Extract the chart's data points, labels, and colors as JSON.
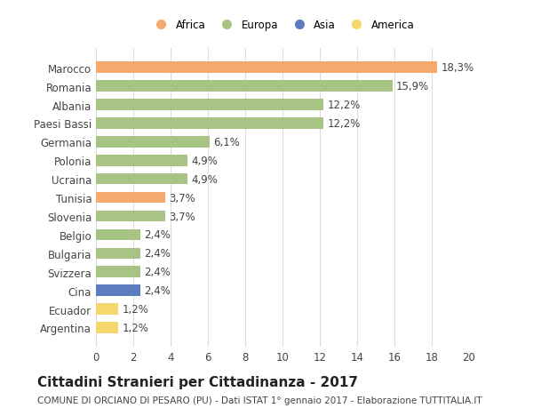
{
  "countries": [
    "Argentina",
    "Ecuador",
    "Cina",
    "Svizzera",
    "Bulgaria",
    "Belgio",
    "Slovenia",
    "Tunisia",
    "Ucraina",
    "Polonia",
    "Germania",
    "Paesi Bassi",
    "Albania",
    "Romania",
    "Marocco"
  ],
  "values": [
    1.2,
    1.2,
    2.4,
    2.4,
    2.4,
    2.4,
    3.7,
    3.7,
    4.9,
    4.9,
    6.1,
    12.2,
    12.2,
    15.9,
    18.3
  ],
  "labels": [
    "1,2%",
    "1,2%",
    "2,4%",
    "2,4%",
    "2,4%",
    "2,4%",
    "3,7%",
    "3,7%",
    "4,9%",
    "4,9%",
    "6,1%",
    "12,2%",
    "12,2%",
    "15,9%",
    "18,3%"
  ],
  "continents": [
    "America",
    "America",
    "Asia",
    "Europa",
    "Europa",
    "Europa",
    "Europa",
    "Africa",
    "Europa",
    "Europa",
    "Europa",
    "Europa",
    "Europa",
    "Europa",
    "Africa"
  ],
  "colors": {
    "Africa": "#F4A96D",
    "Europa": "#A8C484",
    "Asia": "#5B7DBF",
    "America": "#F5D76E"
  },
  "legend_order": [
    "Africa",
    "Europa",
    "Asia",
    "America"
  ],
  "legend_colors": [
    "#F4A96D",
    "#A8C484",
    "#5B7DBF",
    "#F5D76E"
  ],
  "xlim": [
    0,
    20
  ],
  "xticks": [
    0,
    2,
    4,
    6,
    8,
    10,
    12,
    14,
    16,
    18,
    20
  ],
  "title": "Cittadini Stranieri per Cittadinanza - 2017",
  "subtitle": "COMUNE DI ORCIANO DI PESARO (PU) - Dati ISTAT 1° gennaio 2017 - Elaborazione TUTTITALIA.IT",
  "background_color": "#ffffff",
  "grid_color": "#dddddd",
  "bar_height": 0.6,
  "label_fontsize": 8.5,
  "title_fontsize": 11,
  "subtitle_fontsize": 7.5,
  "tick_fontsize": 8.5
}
